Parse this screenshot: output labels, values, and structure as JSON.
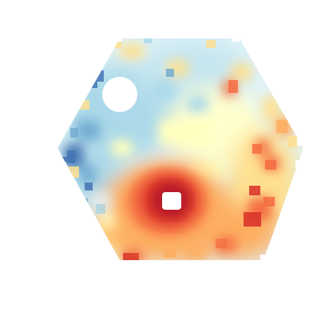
{
  "figure": {
    "kind": "hexagonal-binned-color-map",
    "colormap": "RdYlBu_r",
    "colors": {
      "darkest_red": "#b2182b",
      "red": "#d73027",
      "orange_red": "#f46d43",
      "orange": "#fdae61",
      "light_orange": "#fee090",
      "pale_yellow": "#ffffbf",
      "pale_blue": "#e0f3f8",
      "light_blue": "#abd9e9",
      "blue": "#74add1",
      "dark_blue": "#4575b4",
      "mask": "#ffffff"
    },
    "masked_regions": [
      "masked-circle-upper-left",
      "masked-circle-center"
    ],
    "peak_feature": "central-red-hotspot"
  }
}
